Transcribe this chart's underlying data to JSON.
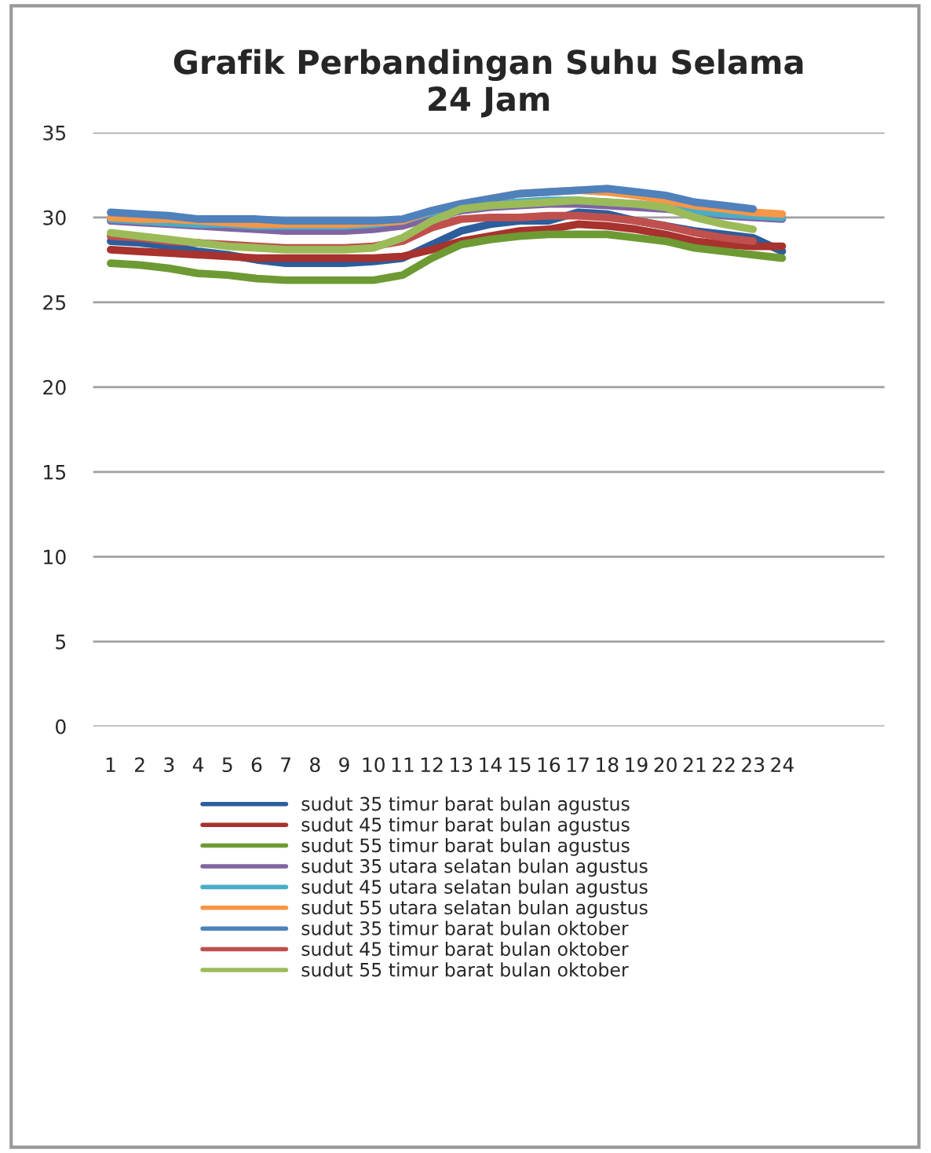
{
  "chart_data": {
    "type": "line",
    "title": "Grafik Perbandingan Suhu Selama\n24 Jam",
    "categories": [
      "1",
      "2",
      "3",
      "4",
      "5",
      "6",
      "7",
      "8",
      "9",
      "10",
      "11",
      "12",
      "13",
      "14",
      "15",
      "16",
      "17",
      "18",
      "19",
      "20",
      "21",
      "22",
      "23",
      "24"
    ],
    "ylim": [
      0,
      35
    ],
    "yticks": [
      0,
      5,
      10,
      15,
      20,
      25,
      30,
      35
    ],
    "grid": "y",
    "legend": "bottom",
    "marker": "none",
    "line_style": "solid",
    "series": [
      {
        "name": "sudut 35 timur barat bulan agustus",
        "color": "#2c5d9c",
        "values": [
          28.6,
          28.5,
          28.3,
          28.0,
          27.8,
          27.5,
          27.3,
          27.3,
          27.3,
          27.4,
          27.6,
          28.4,
          29.2,
          29.6,
          29.8,
          29.8,
          30.3,
          30.2,
          29.8,
          29.5,
          29.2,
          29.0,
          28.8,
          28.0
        ]
      },
      {
        "name": "sudut 45 timur barat bulan agustus",
        "color": "#a8322d",
        "values": [
          28.1,
          28.0,
          27.9,
          27.8,
          27.7,
          27.6,
          27.6,
          27.6,
          27.6,
          27.6,
          27.7,
          28.1,
          28.6,
          28.9,
          29.2,
          29.3,
          29.6,
          29.5,
          29.3,
          29.0,
          28.6,
          28.4,
          28.3,
          28.3
        ]
      },
      {
        "name": "sudut 55 timur barat bulan agustus",
        "color": "#6e9a34",
        "values": [
          27.3,
          27.2,
          27.0,
          26.7,
          26.6,
          26.4,
          26.3,
          26.3,
          26.3,
          26.3,
          26.6,
          27.6,
          28.4,
          28.7,
          28.9,
          29.0,
          29.0,
          29.0,
          28.8,
          28.6,
          28.2,
          28.0,
          27.8,
          27.6
        ]
      },
      {
        "name": "sudut 35 utara selatan bulan agustus",
        "color": "#8064a2",
        "values": [
          29.8,
          29.7,
          29.6,
          29.5,
          29.4,
          29.3,
          29.2,
          29.2,
          29.2,
          29.3,
          29.5,
          30.0,
          30.4,
          30.6,
          30.7,
          30.8,
          30.8,
          30.7,
          30.6,
          30.5,
          30.3,
          30.1,
          30.0,
          29.9
        ]
      },
      {
        "name": "sudut 45 utara selatan bulan agustus",
        "color": "#4bacc6",
        "values": [
          29.9,
          29.8,
          29.7,
          29.6,
          29.6,
          29.5,
          29.5,
          29.5,
          29.5,
          29.6,
          29.8,
          30.3,
          30.6,
          30.8,
          30.9,
          31.0,
          31.0,
          30.9,
          30.8,
          30.6,
          30.4,
          30.2,
          30.1,
          30.0
        ]
      },
      {
        "name": "sudut 55 utara selatan bulan agustus",
        "color": "#f79646",
        "values": [
          30.0,
          29.9,
          29.9,
          29.8,
          29.7,
          29.6,
          29.6,
          29.6,
          29.6,
          29.7,
          29.8,
          30.4,
          30.8,
          31.1,
          31.4,
          31.5,
          31.6,
          31.5,
          31.3,
          31.0,
          30.7,
          30.5,
          30.3,
          30.2
        ]
      },
      {
        "name": "sudut 35 timur barat bulan oktober",
        "color": "#4f81bd",
        "values": [
          30.3,
          30.2,
          30.1,
          29.9,
          29.9,
          29.9,
          29.8,
          29.8,
          29.8,
          29.8,
          29.9,
          30.4,
          30.8,
          31.1,
          31.4,
          31.5,
          31.6,
          31.7,
          31.5,
          31.3,
          30.9,
          30.7,
          30.5,
          null
        ]
      },
      {
        "name": "sudut 45 timur barat bulan oktober",
        "color": "#c0504d",
        "values": [
          28.9,
          28.8,
          28.6,
          28.5,
          28.4,
          28.3,
          28.2,
          28.2,
          28.2,
          28.3,
          28.6,
          29.4,
          29.9,
          30.0,
          30.0,
          30.1,
          30.1,
          30.0,
          29.8,
          29.5,
          29.1,
          28.8,
          28.6,
          null
        ]
      },
      {
        "name": "sudut 55 timur barat bulan oktober",
        "color": "#9bbb59",
        "values": [
          29.1,
          28.9,
          28.7,
          28.5,
          28.3,
          28.2,
          28.1,
          28.1,
          28.1,
          28.2,
          28.8,
          29.8,
          30.5,
          30.7,
          30.8,
          30.9,
          31.0,
          30.9,
          30.8,
          30.6,
          30.0,
          29.6,
          29.3,
          null
        ]
      }
    ]
  }
}
